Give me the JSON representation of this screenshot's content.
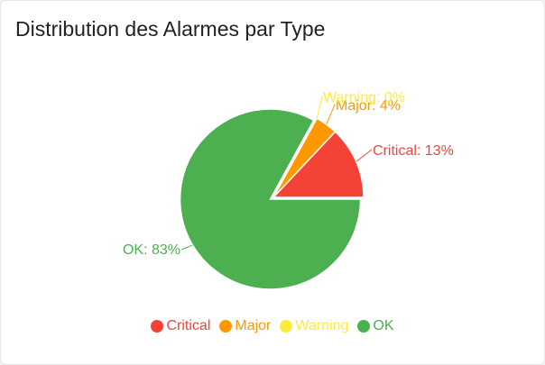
{
  "card": {
    "title": "Distribution des Alarmes par Type"
  },
  "chart_data": {
    "type": "pie",
    "title": "Distribution des Alarmes par Type",
    "categories": [
      "Critical",
      "Major",
      "Warning",
      "OK"
    ],
    "values": [
      13,
      4,
      0,
      83
    ],
    "labels": [
      "Critical: 13%",
      "Major: 4%",
      "Warning: 0%",
      "OK: 83%"
    ],
    "colors": [
      "#f44336",
      "#ff9800",
      "#ffeb3b",
      "#4caf50"
    ],
    "exploded": "OK",
    "legend_position": "bottom"
  }
}
